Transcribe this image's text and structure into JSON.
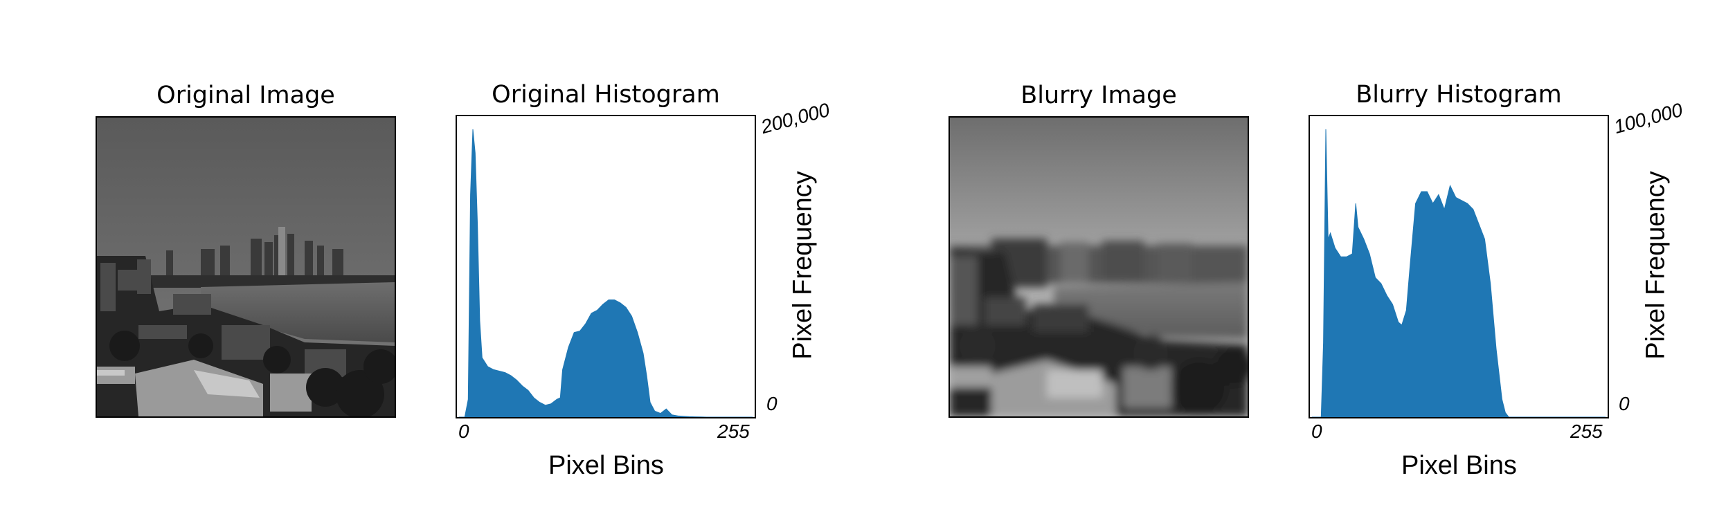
{
  "panels": {
    "original_image_title": "Original Image",
    "blurry_image_title": "Blurry Image"
  },
  "colors": {
    "histogram_fill": "#1f77b4",
    "frame": "#000000"
  },
  "chart_data": [
    {
      "type": "area",
      "title": "Original Histogram",
      "xlabel": "Pixel Bins",
      "ylabel": "Pixel Frequency",
      "x_ticks": [
        "0",
        "255"
      ],
      "y_ticks": [
        "0",
        "200,000"
      ],
      "xlim": [
        0,
        255
      ],
      "ylim": [
        0,
        200000
      ],
      "grid": false,
      "x": [
        0,
        5,
        8,
        10,
        12,
        14,
        16,
        18,
        20,
        25,
        30,
        35,
        40,
        45,
        50,
        55,
        60,
        65,
        70,
        75,
        80,
        85,
        88,
        90,
        95,
        100,
        105,
        110,
        115,
        120,
        125,
        130,
        135,
        140,
        145,
        150,
        155,
        160,
        163,
        166,
        170,
        175,
        180,
        185,
        190,
        195,
        200,
        205,
        210,
        215,
        220,
        225,
        230,
        235,
        240,
        245,
        250,
        255
      ],
      "values": [
        0,
        0,
        12000,
        150000,
        194000,
        178000,
        130000,
        65000,
        40000,
        34000,
        32000,
        31000,
        30000,
        28000,
        25000,
        21000,
        18000,
        13000,
        10000,
        8000,
        9000,
        12000,
        13000,
        32000,
        47000,
        57000,
        58000,
        63000,
        70000,
        72000,
        76000,
        79000,
        79000,
        77000,
        74000,
        68000,
        57000,
        43000,
        28000,
        10000,
        4000,
        2500,
        5500,
        1500,
        800,
        500,
        300,
        200,
        100,
        0,
        0,
        0,
        0,
        0,
        0,
        0,
        0,
        0
      ]
    },
    {
      "type": "area",
      "title": "Blurry Histogram",
      "xlabel": "Pixel Bins",
      "ylabel": "Pixel Frequency",
      "x_ticks": [
        "0",
        "255"
      ],
      "y_ticks": [
        "0",
        "100,000"
      ],
      "xlim": [
        0,
        255
      ],
      "ylim": [
        0,
        100000
      ],
      "grid": false,
      "x": [
        0,
        8,
        10,
        12,
        14,
        16,
        20,
        25,
        30,
        35,
        38,
        40,
        45,
        50,
        55,
        60,
        65,
        70,
        75,
        78,
        82,
        85,
        90,
        95,
        100,
        105,
        110,
        115,
        120,
        125,
        130,
        135,
        140,
        145,
        150,
        155,
        160,
        165,
        168,
        171,
        175,
        180,
        190,
        200,
        210,
        220,
        230,
        240,
        255
      ],
      "values": [
        0,
        0,
        25000,
        97000,
        60000,
        62000,
        57000,
        54000,
        54000,
        55000,
        72000,
        64000,
        60000,
        55000,
        47000,
        45000,
        41000,
        38000,
        32000,
        31000,
        36000,
        50000,
        72000,
        76000,
        76000,
        72000,
        75000,
        70000,
        78000,
        74000,
        73000,
        72000,
        70000,
        65000,
        60000,
        45000,
        23000,
        6000,
        1500,
        0,
        0,
        0,
        0,
        0,
        0,
        0,
        0,
        0,
        0
      ]
    }
  ]
}
